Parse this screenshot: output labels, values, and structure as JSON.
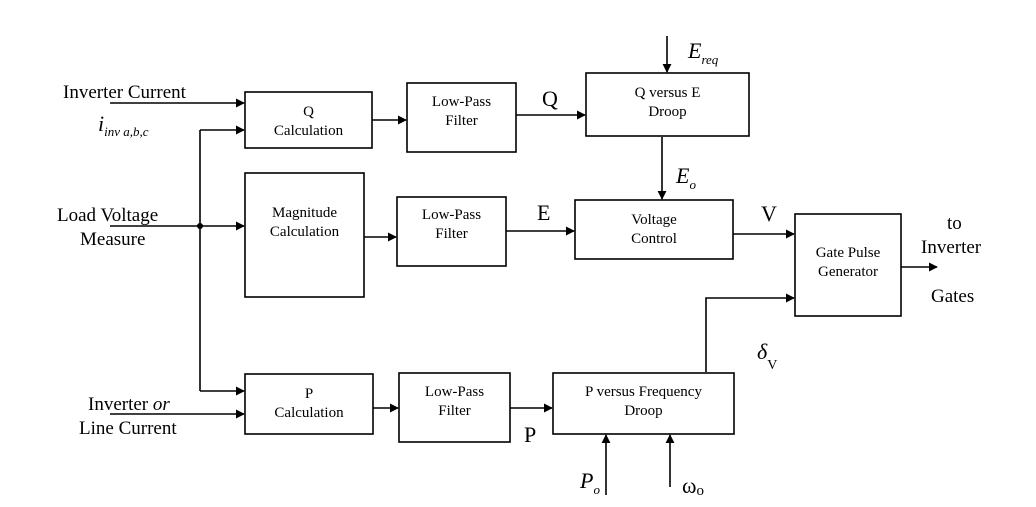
{
  "blocks": {
    "q_calc": [
      "Q",
      "Calculation"
    ],
    "lpf_q": [
      "Low-Pass",
      "Filter"
    ],
    "q_droop": [
      "Q versus E",
      "Droop"
    ],
    "mag_calc": [
      "Magnitude",
      "Calculation"
    ],
    "lpf_e": [
      "Low-Pass",
      "Filter"
    ],
    "volt_ctrl": [
      "Voltage",
      "Control"
    ],
    "gate_pulse": [
      "Gate Pulse",
      "Generator"
    ],
    "p_calc": [
      "P",
      "Calculation"
    ],
    "lpf_p": [
      "Low-Pass",
      "Filter"
    ],
    "p_droop": [
      "P versus Frequency",
      "Droop"
    ]
  },
  "inputs": {
    "inverter_current": "Inverter Current",
    "i_inv_main": "i",
    "i_inv_sub": "inv  a,b,c",
    "load_voltage_1": "Load Voltage",
    "load_voltage_2": "Measure",
    "inv_or_line_1a": "Inverter ",
    "inv_or_line_1b": "or",
    "inv_or_line_2": "Line Current"
  },
  "signals": {
    "q_out": "Q",
    "e_req_main": "E",
    "e_req_sub": "req",
    "e_o_main": "E",
    "e_o_sub": "o",
    "e_out": "E",
    "v_out": "V",
    "delta_main": "δ",
    "delta_sub": "V",
    "p_out": "P",
    "p_o_main": "P",
    "p_o_sub": "o",
    "omega_main": "ω",
    "omega_sub": "o"
  },
  "output": {
    "line1": "to",
    "line2": "Inverter",
    "line3": "Gates"
  }
}
